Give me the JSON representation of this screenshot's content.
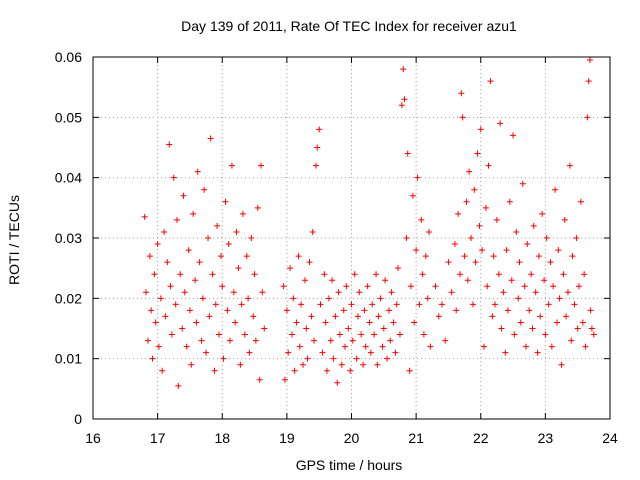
{
  "chart_data": {
    "type": "scatter",
    "title": "Day 139 of 2011, Rate Of TEC Index for receiver azu1",
    "xlabel": "GPS time / hours",
    "ylabel": "ROTI / TECUs",
    "xlim": [
      16,
      24
    ],
    "ylim": [
      0,
      0.06
    ],
    "xticks": [
      "16",
      "17",
      "18",
      "19",
      "20",
      "21",
      "22",
      "23",
      "24"
    ],
    "yticks": [
      "0",
      "0.01",
      "0.02",
      "0.03",
      "0.04",
      "0.05",
      "0.06"
    ],
    "grid": true,
    "marker": "+",
    "color": "#ff0000",
    "series": [
      {
        "name": "azu1",
        "points": [
          [
            16.8,
            0.0335
          ],
          [
            16.82,
            0.021
          ],
          [
            16.85,
            0.013
          ],
          [
            16.88,
            0.027
          ],
          [
            16.9,
            0.018
          ],
          [
            16.92,
            0.01
          ],
          [
            16.95,
            0.024
          ],
          [
            16.97,
            0.016
          ],
          [
            17.0,
            0.029
          ],
          [
            17.02,
            0.012
          ],
          [
            17.05,
            0.02
          ],
          [
            17.07,
            0.008
          ],
          [
            17.1,
            0.031
          ],
          [
            17.12,
            0.017
          ],
          [
            17.15,
            0.026
          ],
          [
            17.18,
            0.0455
          ],
          [
            17.2,
            0.022
          ],
          [
            17.22,
            0.014
          ],
          [
            17.25,
            0.04
          ],
          [
            17.28,
            0.019
          ],
          [
            17.3,
            0.033
          ],
          [
            17.32,
            0.0055
          ],
          [
            17.35,
            0.024
          ],
          [
            17.38,
            0.015
          ],
          [
            17.4,
            0.037
          ],
          [
            17.42,
            0.021
          ],
          [
            17.45,
            0.012
          ],
          [
            17.48,
            0.028
          ],
          [
            17.5,
            0.018
          ],
          [
            17.52,
            0.009
          ],
          [
            17.55,
            0.034
          ],
          [
            17.58,
            0.023
          ],
          [
            17.6,
            0.016
          ],
          [
            17.62,
            0.041
          ],
          [
            17.65,
            0.026
          ],
          [
            17.68,
            0.013
          ],
          [
            17.7,
            0.02
          ],
          [
            17.72,
            0.038
          ],
          [
            17.75,
            0.011
          ],
          [
            17.78,
            0.03
          ],
          [
            17.8,
            0.017
          ],
          [
            17.82,
            0.0465
          ],
          [
            17.85,
            0.024
          ],
          [
            17.88,
            0.008
          ],
          [
            17.9,
            0.019
          ],
          [
            17.92,
            0.032
          ],
          [
            17.95,
            0.014
          ],
          [
            17.98,
            0.027
          ],
          [
            18.0,
            0.022
          ],
          [
            18.02,
            0.01
          ],
          [
            18.05,
            0.036
          ],
          [
            18.08,
            0.018
          ],
          [
            18.1,
            0.029
          ],
          [
            18.12,
            0.013
          ],
          [
            18.15,
            0.042
          ],
          [
            18.18,
            0.021
          ],
          [
            18.2,
            0.016
          ],
          [
            18.22,
            0.031
          ],
          [
            18.25,
            0.025
          ],
          [
            18.28,
            0.009
          ],
          [
            18.3,
            0.019
          ],
          [
            18.32,
            0.034
          ],
          [
            18.35,
            0.014
          ],
          [
            18.38,
            0.027
          ],
          [
            18.4,
            0.02
          ],
          [
            18.42,
            0.011
          ],
          [
            18.45,
            0.03
          ],
          [
            18.48,
            0.017
          ],
          [
            18.5,
            0.024
          ],
          [
            18.52,
            0.013
          ],
          [
            18.55,
            0.035
          ],
          [
            18.58,
            0.0065
          ],
          [
            18.6,
            0.042
          ],
          [
            18.62,
            0.021
          ],
          [
            18.65,
            0.015
          ],
          [
            18.95,
            0.022
          ],
          [
            18.97,
            0.0065
          ],
          [
            19.0,
            0.018
          ],
          [
            19.02,
            0.011
          ],
          [
            19.05,
            0.025
          ],
          [
            19.08,
            0.014
          ],
          [
            19.1,
            0.02
          ],
          [
            19.12,
            0.008
          ],
          [
            19.15,
            0.016
          ],
          [
            19.18,
            0.027
          ],
          [
            19.2,
            0.012
          ],
          [
            19.22,
            0.019
          ],
          [
            19.25,
            0.009
          ],
          [
            19.28,
            0.023
          ],
          [
            19.3,
            0.015
          ],
          [
            19.32,
            0.01
          ],
          [
            19.35,
            0.026
          ],
          [
            19.38,
            0.017
          ],
          [
            19.4,
            0.031
          ],
          [
            19.42,
            0.013
          ],
          [
            19.45,
            0.042
          ],
          [
            19.47,
            0.045
          ],
          [
            19.5,
            0.048
          ],
          [
            19.52,
            0.019
          ],
          [
            19.55,
            0.011
          ],
          [
            19.58,
            0.024
          ],
          [
            19.6,
            0.016
          ],
          [
            19.62,
            0.008
          ],
          [
            19.65,
            0.02
          ],
          [
            19.68,
            0.013
          ],
          [
            19.7,
            0.023
          ],
          [
            19.72,
            0.01
          ],
          [
            19.75,
            0.017
          ],
          [
            19.78,
            0.006
          ],
          [
            19.8,
            0.021
          ],
          [
            19.82,
            0.014
          ],
          [
            19.85,
            0.009
          ],
          [
            19.88,
            0.018
          ],
          [
            19.9,
            0.012
          ],
          [
            19.92,
            0.022
          ],
          [
            19.95,
            0.015
          ],
          [
            19.98,
            0.008
          ],
          [
            20.0,
            0.019
          ],
          [
            20.02,
            0.013
          ],
          [
            20.05,
            0.024
          ],
          [
            20.08,
            0.01
          ],
          [
            20.1,
            0.017
          ],
          [
            20.12,
            0.021
          ],
          [
            20.15,
            0.014
          ],
          [
            20.18,
            0.009
          ],
          [
            20.2,
            0.018
          ],
          [
            20.22,
            0.012
          ],
          [
            20.25,
            0.022
          ],
          [
            20.28,
            0.016
          ],
          [
            20.3,
            0.011
          ],
          [
            20.32,
            0.019
          ],
          [
            20.35,
            0.014
          ],
          [
            20.38,
            0.024
          ],
          [
            20.4,
            0.009
          ],
          [
            20.42,
            0.017
          ],
          [
            20.45,
            0.02
          ],
          [
            20.48,
            0.012
          ],
          [
            20.5,
            0.015
          ],
          [
            20.52,
            0.023
          ],
          [
            20.55,
            0.01
          ],
          [
            20.58,
            0.018
          ],
          [
            20.6,
            0.013
          ],
          [
            20.62,
            0.021
          ],
          [
            20.65,
            0.016
          ],
          [
            20.68,
            0.011
          ],
          [
            20.7,
            0.019
          ],
          [
            20.72,
            0.025
          ],
          [
            20.75,
            0.014
          ],
          [
            20.78,
            0.052
          ],
          [
            20.8,
            0.058
          ],
          [
            20.82,
            0.053
          ],
          [
            20.85,
            0.03
          ],
          [
            20.87,
            0.044
          ],
          [
            20.9,
            0.008
          ],
          [
            20.92,
            0.022
          ],
          [
            20.95,
            0.037
          ],
          [
            20.97,
            0.016
          ],
          [
            21.0,
            0.028
          ],
          [
            21.02,
            0.04
          ],
          [
            21.05,
            0.019
          ],
          [
            21.08,
            0.033
          ],
          [
            21.1,
            0.024
          ],
          [
            21.12,
            0.014
          ],
          [
            21.15,
            0.027
          ],
          [
            21.18,
            0.02
          ],
          [
            21.2,
            0.031
          ],
          [
            21.22,
            0.012
          ],
          [
            21.3,
            0.022
          ],
          [
            21.35,
            0.017
          ],
          [
            21.4,
            0.019
          ],
          [
            21.45,
            0.013
          ],
          [
            21.5,
            0.026
          ],
          [
            21.55,
            0.021
          ],
          [
            21.6,
            0.029
          ],
          [
            21.62,
            0.018
          ],
          [
            21.65,
            0.034
          ],
          [
            21.68,
            0.024
          ],
          [
            21.7,
            0.054
          ],
          [
            21.72,
            0.05
          ],
          [
            21.75,
            0.027
          ],
          [
            21.78,
            0.036
          ],
          [
            21.8,
            0.023
          ],
          [
            21.82,
            0.041
          ],
          [
            21.85,
            0.03
          ],
          [
            21.88,
            0.019
          ],
          [
            21.9,
            0.038
          ],
          [
            21.92,
            0.026
          ],
          [
            21.95,
            0.044
          ],
          [
            21.98,
            0.032
          ],
          [
            22.0,
            0.048
          ],
          [
            22.02,
            0.028
          ],
          [
            22.05,
            0.012
          ],
          [
            22.08,
            0.035
          ],
          [
            22.1,
            0.022
          ],
          [
            22.12,
            0.042
          ],
          [
            22.15,
            0.056
          ],
          [
            22.18,
            0.017
          ],
          [
            22.2,
            0.027
          ],
          [
            22.22,
            0.019
          ],
          [
            22.25,
            0.033
          ],
          [
            22.28,
            0.024
          ],
          [
            22.3,
            0.049
          ],
          [
            22.32,
            0.015
          ],
          [
            22.35,
            0.021
          ],
          [
            22.38,
            0.011
          ],
          [
            22.4,
            0.028
          ],
          [
            22.42,
            0.018
          ],
          [
            22.45,
            0.036
          ],
          [
            22.48,
            0.023
          ],
          [
            22.5,
            0.047
          ],
          [
            22.52,
            0.014
          ],
          [
            22.55,
            0.031
          ],
          [
            22.58,
            0.02
          ],
          [
            22.6,
            0.026
          ],
          [
            22.62,
            0.016
          ],
          [
            22.65,
            0.039
          ],
          [
            22.68,
            0.022
          ],
          [
            22.7,
            0.012
          ],
          [
            22.72,
            0.029
          ],
          [
            22.75,
            0.018
          ],
          [
            22.78,
            0.024
          ],
          [
            22.8,
            0.015
          ],
          [
            22.82,
            0.032
          ],
          [
            22.85,
            0.021
          ],
          [
            22.88,
            0.011
          ],
          [
            22.9,
            0.027
          ],
          [
            22.92,
            0.017
          ],
          [
            22.95,
            0.034
          ],
          [
            22.98,
            0.023
          ],
          [
            23.0,
            0.014
          ],
          [
            23.02,
            0.03
          ],
          [
            23.05,
            0.019
          ],
          [
            23.08,
            0.026
          ],
          [
            23.1,
            0.012
          ],
          [
            23.12,
            0.022
          ],
          [
            23.15,
            0.038
          ],
          [
            23.18,
            0.016
          ],
          [
            23.2,
            0.028
          ],
          [
            23.22,
            0.02
          ],
          [
            23.25,
            0.009
          ],
          [
            23.28,
            0.024
          ],
          [
            23.3,
            0.033
          ],
          [
            23.32,
            0.017
          ],
          [
            23.35,
            0.021
          ],
          [
            23.38,
            0.042
          ],
          [
            23.4,
            0.013
          ],
          [
            23.42,
            0.027
          ],
          [
            23.45,
            0.019
          ],
          [
            23.48,
            0.03
          ],
          [
            23.5,
            0.015
          ],
          [
            23.52,
            0.022
          ],
          [
            23.55,
            0.036
          ],
          [
            23.58,
            0.016
          ],
          [
            23.6,
            0.024
          ],
          [
            23.62,
            0.012
          ],
          [
            23.65,
            0.05
          ],
          [
            23.67,
            0.056
          ],
          [
            23.69,
            0.0595
          ],
          [
            23.7,
            0.018
          ],
          [
            23.72,
            0.015
          ],
          [
            23.75,
            0.014
          ]
        ]
      }
    ]
  }
}
